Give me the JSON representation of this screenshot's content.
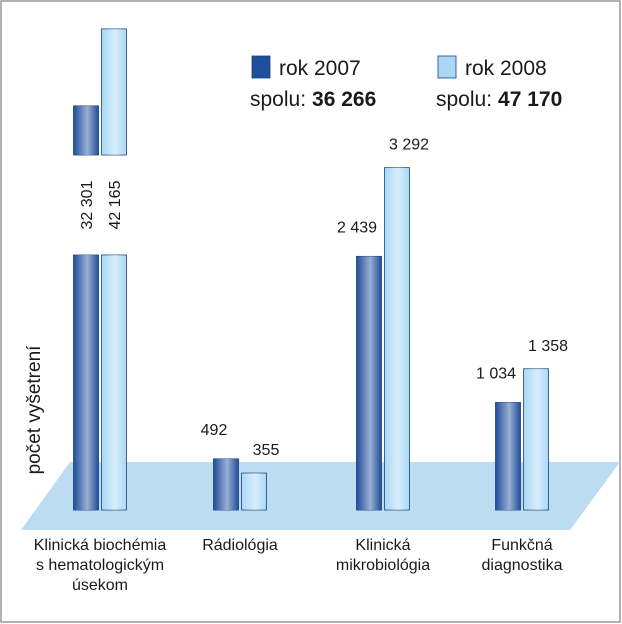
{
  "chart_data": {
    "type": "bar",
    "y_label": "počet vyšetrení",
    "categories": [
      "Klinická biochémia s hematologickým úsekom",
      "Rádiológia",
      "Klinická mikrobiológia",
      "Funkčná diagnostika"
    ],
    "series": [
      {
        "name": "rok 2007",
        "color": "#1f4e9c",
        "total_label": "spolu:",
        "total": "36 266",
        "values": [
          32301,
          492,
          2439,
          1034
        ],
        "value_labels": [
          "32 301",
          "492",
          "2 439",
          "1 034"
        ]
      },
      {
        "name": "rok 2008",
        "color": "#a8d8f5",
        "total_label": "spolu:",
        "total": "47 170",
        "values": [
          42165,
          355,
          3292,
          1358
        ],
        "value_labels": [
          "42 165",
          "355",
          "3 292",
          "1 358"
        ]
      }
    ]
  }
}
